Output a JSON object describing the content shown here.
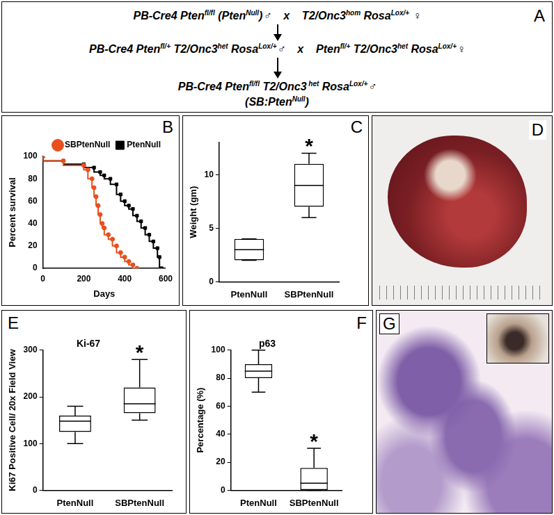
{
  "scheme": {
    "label": "A",
    "lines": [
      [
        {
          "text": "PB-Cre4 Pten"
        },
        {
          "text": "fl/fl",
          "sup": true
        },
        {
          "text": " (Pten"
        },
        {
          "text": "Null",
          "sup": true
        },
        {
          "text": ")♂    x    T2/Onc3"
        },
        {
          "text": "hom",
          "sup": true
        },
        {
          "text": " Rosa"
        },
        {
          "text": "Lox/+",
          "sup": true
        },
        {
          "text": " ♀"
        }
      ],
      [
        {
          "text": "PB-Cre4 Pten"
        },
        {
          "text": "fl/+",
          "sup": true
        },
        {
          "text": " T2/Onc3"
        },
        {
          "text": "het",
          "sup": true
        },
        {
          "text": " Rosa"
        },
        {
          "text": "Lox/+",
          "sup": true
        },
        {
          "text": "♂    x    Pten"
        },
        {
          "text": "fl/+",
          "sup": true
        },
        {
          "text": " T2/Onc3"
        },
        {
          "text": "het",
          "sup": true
        },
        {
          "text": " Rosa"
        },
        {
          "text": "Lox/+",
          "sup": true
        },
        {
          "text": "♀"
        }
      ],
      [
        {
          "text": "PB-Cre4 Pten"
        },
        {
          "text": "fl/fl",
          "sup": true
        },
        {
          "text": " T2/Onc3"
        },
        {
          "text": " het",
          "sup": true
        },
        {
          "text": " Rosa"
        },
        {
          "text": "Lox/+",
          "sup": true
        },
        {
          "text": "♂"
        }
      ],
      [
        {
          "text": "(SB:Pten"
        },
        {
          "text": "Null",
          "sup": true
        },
        {
          "text": ")"
        }
      ]
    ]
  },
  "chart_data": [
    {
      "type": "line",
      "label": "B",
      "xlabel": "Days",
      "ylabel": "Percent survival",
      "xlim": [
        0,
        600
      ],
      "xticks": [
        0,
        200,
        400,
        600
      ],
      "ylim": [
        0,
        100
      ],
      "yticks": [
        0,
        20,
        40,
        60,
        80,
        100
      ],
      "grid": false,
      "legend": "top right",
      "series": [
        {
          "name": "SBPtenNull",
          "color": "#e8501e",
          "marker": "circle",
          "x": [
            0,
            100,
            200,
            220,
            240,
            250,
            260,
            270,
            280,
            290,
            300,
            320,
            340,
            360,
            380,
            400,
            420,
            440,
            460
          ],
          "values": [
            100,
            96,
            92,
            88,
            80,
            72,
            64,
            56,
            48,
            40,
            36,
            30,
            26,
            20,
            14,
            10,
            6,
            3,
            0
          ]
        },
        {
          "name": "PtenNull",
          "color": "#000000",
          "marker": "square",
          "x": [
            0,
            100,
            200,
            250,
            280,
            300,
            330,
            360,
            380,
            400,
            420,
            440,
            460,
            480,
            500,
            520,
            540,
            560,
            570,
            580
          ],
          "values": [
            100,
            96,
            93,
            90,
            86,
            83,
            80,
            75,
            66,
            60,
            56,
            53,
            47,
            42,
            36,
            30,
            24,
            18,
            10,
            0
          ]
        }
      ]
    },
    {
      "type": "box",
      "label": "C",
      "ylabel": "Weight (gm)",
      "categories": [
        "PtenNull",
        "SBPtenNull"
      ],
      "boxes": [
        {
          "min": 2,
          "q1": 2,
          "median": 3,
          "q3": 4,
          "max": 4
        },
        {
          "min": 6,
          "q1": 7,
          "median": 9,
          "q3": 11,
          "max": 12
        }
      ],
      "ylim": [
        0,
        13
      ],
      "yticks": [
        0,
        5,
        10
      ],
      "grid": false,
      "annotations": [
        {
          "text": "*",
          "category": "SBPtenNull"
        }
      ]
    },
    {
      "type": "box",
      "label": "E",
      "title": "Ki-67",
      "ylabel": "Ki67 Positive Cell/ 20x Field View",
      "categories": [
        "PtenNull",
        "SBPtenNull"
      ],
      "boxes": [
        {
          "min": 100,
          "q1": 125,
          "median": 148,
          "q3": 160,
          "max": 180
        },
        {
          "min": 150,
          "q1": 165,
          "median": 185,
          "q3": 220,
          "max": 280
        }
      ],
      "ylim": [
        0,
        300
      ],
      "yticks": [
        0,
        100,
        200,
        300
      ],
      "grid": false,
      "annotations": [
        {
          "text": "*",
          "category": "SBPtenNull"
        }
      ]
    },
    {
      "type": "box",
      "label": "F",
      "title": "p63",
      "ylabel": "Percentage (%)",
      "categories": [
        "PtenNull",
        "SBPtenNull"
      ],
      "boxes": [
        {
          "min": 70,
          "q1": 80,
          "median": 85,
          "q3": 90,
          "max": 100
        },
        {
          "min": 0,
          "q1": 0,
          "median": 5,
          "q3": 16,
          "max": 30
        }
      ],
      "ylim": [
        0,
        100
      ],
      "yticks": [
        0,
        20,
        40,
        60,
        80,
        100
      ],
      "grid": false,
      "annotations": [
        {
          "text": "*",
          "category": "SBPtenNull"
        }
      ]
    }
  ],
  "photos": [
    {
      "label": "D"
    },
    {
      "label": "G"
    }
  ]
}
